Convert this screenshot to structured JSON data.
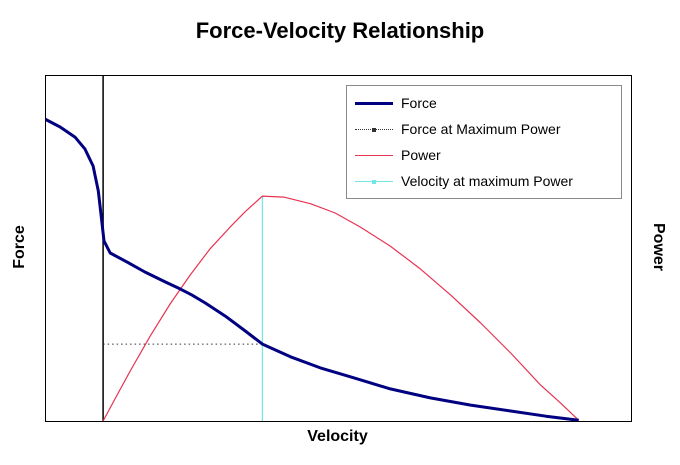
{
  "chart_data": {
    "type": "line",
    "title": "Force-Velocity Relationship",
    "xlabel": "Velocity",
    "ylabel_left": "Force",
    "ylabel_right": "Power",
    "xlim": [
      -0.12,
      1.11
    ],
    "ylim": [
      0,
      1.0
    ],
    "grid": false,
    "legend_position": "top-right",
    "units": "normalized (velocity as fraction of max velocity; force/power as fraction of axis max); no tick labels shown",
    "annotations": {
      "zero_velocity_line_x": 0,
      "velocity_at_max_power": 0.335,
      "force_at_max_power": 0.223,
      "max_power": 0.652
    },
    "series": [
      {
        "id": "zero-velocity-axis",
        "name": "zero velocity axis line",
        "color": "#000000",
        "width": 1.5,
        "style": "solid",
        "in_legend": false,
        "points": [
          [
            0,
            0
          ],
          [
            0,
            1.0
          ]
        ]
      },
      {
        "id": "velocity-at-max-power-line",
        "name": "Velocity at maximum Power",
        "color": "#72e6e6",
        "width": 1.2,
        "style": "solid",
        "marker": true,
        "in_legend": true,
        "points": [
          [
            0.335,
            0
          ],
          [
            0.335,
            0.652
          ]
        ]
      },
      {
        "id": "force-at-max-power-line",
        "name": "Force at Maximum Power",
        "color": "#333333",
        "width": 1,
        "style": "dotted",
        "marker": true,
        "in_legend": true,
        "points": [
          [
            0,
            0.223
          ],
          [
            0.335,
            0.223
          ]
        ]
      },
      {
        "id": "power-curve",
        "name": "Power",
        "color": "#e73352",
        "width": 1.2,
        "style": "solid",
        "in_legend": true,
        "points": [
          [
            0,
            0
          ],
          [
            0.025,
            0.064
          ],
          [
            0.057,
            0.145
          ],
          [
            0.099,
            0.246
          ],
          [
            0.141,
            0.339
          ],
          [
            0.183,
            0.423
          ],
          [
            0.225,
            0.499
          ],
          [
            0.267,
            0.562
          ],
          [
            0.299,
            0.607
          ],
          [
            0.335,
            0.652
          ],
          [
            0.38,
            0.649
          ],
          [
            0.436,
            0.63
          ],
          [
            0.488,
            0.603
          ],
          [
            0.541,
            0.562
          ],
          [
            0.604,
            0.507
          ],
          [
            0.667,
            0.441
          ],
          [
            0.731,
            0.365
          ],
          [
            0.794,
            0.284
          ],
          [
            0.857,
            0.197
          ],
          [
            0.92,
            0.104
          ],
          [
            0.962,
            0.052
          ],
          [
            1.0,
            0.002
          ]
        ]
      },
      {
        "id": "force-curve",
        "name": "Force",
        "color": "#000080",
        "width": 3,
        "style": "solid",
        "in_legend": true,
        "points": [
          [
            -0.122,
            0.875
          ],
          [
            -0.09,
            0.852
          ],
          [
            -0.059,
            0.823
          ],
          [
            -0.038,
            0.788
          ],
          [
            -0.021,
            0.739
          ],
          [
            -0.01,
            0.667
          ],
          [
            -0.004,
            0.594
          ],
          [
            0.002,
            0.522
          ],
          [
            0.015,
            0.487
          ],
          [
            0.046,
            0.464
          ],
          [
            0.088,
            0.432
          ],
          [
            0.131,
            0.403
          ],
          [
            0.162,
            0.383
          ],
          [
            0.187,
            0.365
          ],
          [
            0.215,
            0.342
          ],
          [
            0.257,
            0.304
          ],
          [
            0.299,
            0.261
          ],
          [
            0.335,
            0.223
          ],
          [
            0.394,
            0.186
          ],
          [
            0.457,
            0.154
          ],
          [
            0.52,
            0.128
          ],
          [
            0.604,
            0.093
          ],
          [
            0.688,
            0.067
          ],
          [
            0.773,
            0.046
          ],
          [
            0.857,
            0.029
          ],
          [
            0.931,
            0.014
          ],
          [
            1.0,
            0.002
          ]
        ]
      }
    ],
    "legend": {
      "items": [
        {
          "label": "Force",
          "series": 4
        },
        {
          "label": "Force at Maximum Power",
          "series": 2
        },
        {
          "label": "Power",
          "series": 3
        },
        {
          "label": "Velocity at maximum Power",
          "series": 1
        }
      ]
    }
  }
}
